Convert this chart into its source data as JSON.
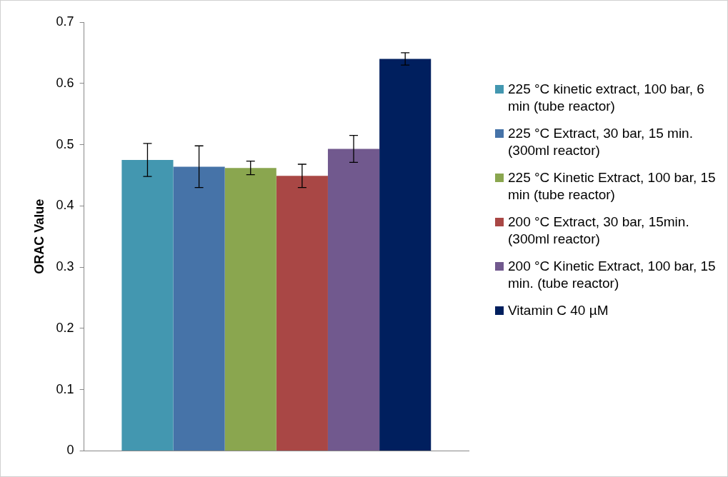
{
  "chart_data": {
    "type": "bar",
    "ylabel": "ORAC Value",
    "categories": [
      null
    ],
    "series": [
      {
        "name": "225 °C kinetic extract, 100 bar, 6 min (tube reactor)",
        "color": "#4397b0",
        "values": [
          0.475
        ],
        "errors": [
          0.027
        ]
      },
      {
        "name": "225 °C Extract, 30 bar, 15 min. (300ml reactor)",
        "color": "#4673a8",
        "values": [
          0.464
        ],
        "errors": [
          0.034
        ]
      },
      {
        "name": "225 °C Kinetic Extract, 100 bar, 15 min (tube reactor)",
        "color": "#8aa64f",
        "values": [
          0.462
        ],
        "errors": [
          0.011
        ]
      },
      {
        "name": "200 °C Extract, 30 bar, 15min. (300ml reactor)",
        "color": "#a94745",
        "values": [
          0.449
        ],
        "errors": [
          0.019
        ]
      },
      {
        "name": "200 °C Kinetic Extract, 100 bar, 15 min. (tube reactor)",
        "color": "#71598e",
        "values": [
          0.493
        ],
        "errors": [
          0.022
        ]
      },
      {
        "name": "Vitamin C 40 µM",
        "color": "#001f5e",
        "values": [
          0.64
        ],
        "errors": [
          0.01
        ]
      }
    ],
    "ylim": [
      0,
      0.7
    ],
    "yticks": [
      0,
      0.1,
      0.2,
      0.3,
      0.4,
      0.5,
      0.6,
      0.7
    ],
    "grid": false,
    "legend": "right"
  }
}
